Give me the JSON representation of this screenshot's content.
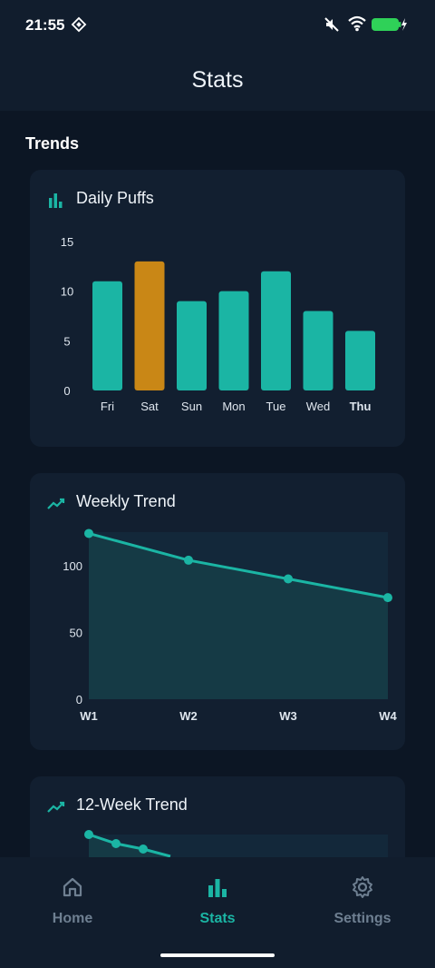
{
  "status_bar": {
    "time": "21:55"
  },
  "header": {
    "title": "Stats"
  },
  "section_title": "Trends",
  "daily_card": {
    "title": "Daily Puffs",
    "icon": "bar-chart-icon"
  },
  "weekly_card": {
    "title": "Weekly Trend",
    "icon": "trend-line-icon"
  },
  "twelve_card": {
    "title": "12-Week Trend",
    "icon": "trend-line-icon"
  },
  "colors": {
    "accent": "#1bb5a4",
    "highlight": "#c98716",
    "card": "#121f30",
    "background": "#0c1624"
  },
  "chart_data": [
    {
      "type": "bar",
      "title": "Daily Puffs",
      "categories": [
        "Fri",
        "Sat",
        "Sun",
        "Mon",
        "Tue",
        "Wed",
        "Thu"
      ],
      "values": [
        11,
        13,
        9,
        10,
        12,
        8,
        6
      ],
      "highlighted_category": "Sat",
      "current_category": "Thu",
      "y_ticks": [
        "0",
        "5",
        "10",
        "15"
      ],
      "ylim": [
        0,
        15
      ]
    },
    {
      "type": "area",
      "title": "Weekly Trend",
      "x": [
        "W1",
        "W2",
        "W3",
        "W4"
      ],
      "values": [
        124,
        104,
        90,
        76
      ],
      "y_ticks": [
        "0",
        "50",
        "100"
      ],
      "ylim": [
        0,
        125
      ]
    },
    {
      "type": "line",
      "title": "12-Week Trend",
      "values": [
        124,
        114,
        108,
        100
      ]
    }
  ],
  "bottom_nav": {
    "items": [
      {
        "label": "Home",
        "icon": "home-icon",
        "active": false
      },
      {
        "label": "Stats",
        "icon": "bar-chart-icon",
        "active": true
      },
      {
        "label": "Settings",
        "icon": "gear-icon",
        "active": false
      }
    ]
  }
}
